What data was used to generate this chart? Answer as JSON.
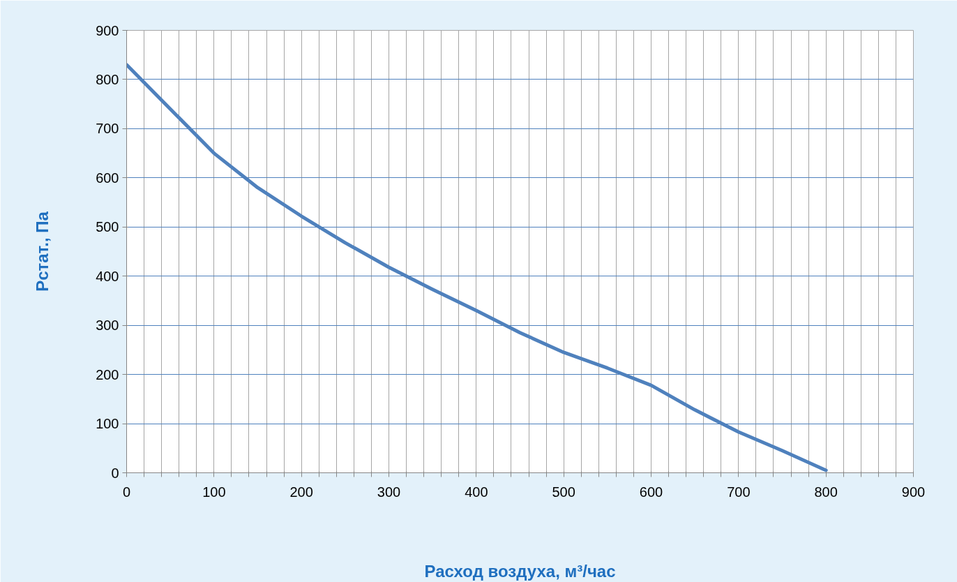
{
  "chart_data": {
    "type": "line",
    "xlabel": "Расход воздуха, м³/час",
    "ylabel": "Pстат., Па",
    "x": [
      0,
      50,
      100,
      150,
      200,
      250,
      300,
      350,
      400,
      450,
      500,
      550,
      600,
      650,
      700,
      750,
      800
    ],
    "series": [
      {
        "color": "#4f81bd",
        "values": [
          830,
          740,
          650,
          580,
          522,
          468,
          418,
          373,
          330,
          285,
          245,
          213,
          178,
          128,
          83,
          45,
          5
        ]
      }
    ],
    "xlim": [
      0,
      900
    ],
    "ylim": [
      0,
      900
    ],
    "xticks": [
      0,
      {
        "value": 20,
        "label": null
      },
      {
        "value": 40,
        "label": null
      },
      {
        "value": 60,
        "label": null
      },
      {
        "value": 80,
        "label": null
      },
      100,
      {
        "value": 120,
        "label": null
      },
      {
        "value": 140,
        "label": null
      },
      {
        "value": 160,
        "label": null
      },
      {
        "value": 180,
        "label": null
      },
      200,
      {
        "value": 220,
        "label": null
      },
      {
        "value": 240,
        "label": null
      },
      {
        "value": 260,
        "label": null
      },
      {
        "value": 280,
        "label": null
      },
      300,
      {
        "value": 320,
        "label": null
      },
      {
        "value": 340,
        "label": null
      },
      {
        "value": 360,
        "label": null
      },
      {
        "value": 380,
        "label": null
      },
      400,
      {
        "value": 420,
        "label": null
      },
      {
        "value": 440,
        "label": null
      },
      {
        "value": 460,
        "label": null
      },
      {
        "value": 480,
        "label": null
      },
      500,
      {
        "value": 520,
        "label": null
      },
      {
        "value": 540,
        "label": null
      },
      {
        "value": 560,
        "label": null
      },
      {
        "value": 580,
        "label": null
      },
      600,
      {
        "value": 620,
        "label": null
      },
      {
        "value": 640,
        "label": null
      },
      {
        "value": 660,
        "label": null
      },
      {
        "value": 680,
        "label": null
      },
      700,
      {
        "value": 720,
        "label": null
      },
      {
        "value": 740,
        "label": null
      },
      {
        "value": 760,
        "label": null
      },
      {
        "value": 780,
        "label": null
      },
      800,
      {
        "value": 820,
        "label": null
      },
      {
        "value": 840,
        "label": null
      },
      {
        "value": 860,
        "label": null
      },
      {
        "value": 880,
        "label": null
      },
      900
    ],
    "yticks": [
      0,
      100,
      200,
      300,
      400,
      500,
      600,
      700,
      800,
      900
    ],
    "grid": true,
    "marker": "none",
    "line_style": "solid"
  }
}
